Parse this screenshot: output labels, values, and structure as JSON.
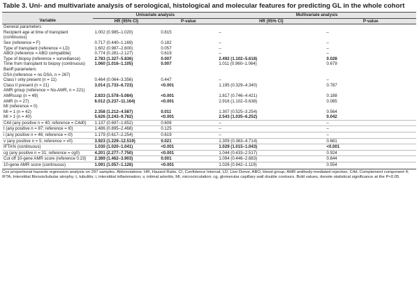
{
  "title": "Table 3. Uni- and multivariate analysis of serological, histological and molecular features for predicting GL in the whole cohort",
  "header": {
    "univariate_label": "Univariate analysis",
    "multivariate_label": "Multivariate analysis",
    "variable_label": "Variable",
    "hr_label": "HR (95% CI)",
    "p_label": "P-value",
    "hr2_label": "HR (95% CI)",
    "p2_label": "P-value"
  },
  "rows": [
    {
      "v": "General parameters",
      "lvl": 0,
      "hr": "",
      "p": "",
      "hr2": "",
      "p2": "",
      "sep": false
    },
    {
      "v": "Recipient age at time of transplant (continuous)",
      "lvl": 1,
      "hr": "1.002 (0.985–1.020)",
      "p": "0.815",
      "hr2": "–",
      "p2": "–",
      "sep": false
    },
    {
      "v": "Sex (reference = F)",
      "lvl": 1,
      "hr": "0.717 (0.440–1.169)",
      "p": "0.182",
      "hr2": "–",
      "p2": "–",
      "sep": false
    },
    {
      "v": "Type of transplant (reference = LD)",
      "lvl": 1,
      "hr": "1.602 (0.987–2.600)",
      "p": "0.057",
      "hr2": "–",
      "p2": "–",
      "sep": false
    },
    {
      "v": "ABOi (reference = ABO compatible)",
      "lvl": 1,
      "hr": "0.774 (0.281–2.127)",
      "p": "0.619",
      "hr2": "–",
      "p2": "–",
      "sep": false
    },
    {
      "v": "Type of biopsy (reference = surveillance)",
      "lvl": 1,
      "hr": "2.783 (1.327–5.836)",
      "p": "0.007",
      "hr2": "2.492 (1.102–5.618)",
      "p2": "0.028",
      "b": true,
      "b2": true,
      "sep": false
    },
    {
      "v": "Time from transplant to biopsy (continuous)",
      "lvl": 1,
      "hr": "1.060 (1.016–1.105)",
      "p": "0.007",
      "hr2": "1.011 (0.960–1.064)",
      "p2": "0.679",
      "b": true,
      "sep": false
    },
    {
      "v": "Banff parameters",
      "lvl": 0,
      "hr": "",
      "p": "",
      "hr2": "",
      "p2": "",
      "sep": false
    },
    {
      "v": "DSA (reference = no DSA, n = 267)",
      "lvl": 0,
      "hr": "",
      "p": "",
      "hr2": "",
      "p2": "",
      "sep": false
    },
    {
      "v": "Class I only present (n = 11)",
      "lvl": 2,
      "hr": "0.464 (0.064–3.356)",
      "p": "0.447",
      "hr2": "–",
      "p2": "–",
      "sep": false
    },
    {
      "v": "Class II present (n = 21)",
      "lvl": 2,
      "hr": "3.014 (1.733–6.723)",
      "p": "<0.001",
      "hr2": "1.195 (0.329–4.340)",
      "p2": "0.787",
      "b": true,
      "sep": false
    },
    {
      "v": "AMR group (reference = No-AMR, n = 221)",
      "lvl": 0,
      "hr": "",
      "p": "",
      "hr2": "",
      "p2": "",
      "sep": false
    },
    {
      "v": "AMRsusp (n = 49)",
      "lvl": 2,
      "hr": "2.833 (1.578–5.084)",
      "p": "<0.001",
      "hr2": "1.817 (0.746–4.421)",
      "p2": "0.188",
      "b": true,
      "sep": false
    },
    {
      "v": "AMR (n = 27)",
      "lvl": 2,
      "hr": "6.012 (3.237–11.164)",
      "p": "<0.001",
      "hr2": "2.916 (1.102–5.638)",
      "p2": "0.085",
      "b": true,
      "sep": false
    },
    {
      "v": "MI (reference = 0)",
      "lvl": 0,
      "hr": "",
      "p": "",
      "hr2": "",
      "p2": "",
      "sep": false
    },
    {
      "v": "MI = 1 (n = 42)",
      "lvl": 2,
      "hr": "2.358 (1.212–4.587)",
      "p": "0.011",
      "hr2": "1.307 (0.525–3.254)",
      "p2": "0.564",
      "b": true,
      "sep": false
    },
    {
      "v": "MI > 1 (n = 40)",
      "lvl": 2,
      "hr": "5.626 (3.243–9.762)",
      "p": "<0.001",
      "hr2": "2.543 (1.035–6.252)",
      "p2": "0.042",
      "b": true,
      "b2": true,
      "sep": false
    },
    {
      "v": "C4d (any positive n = 40; reference = C4d0)",
      "lvl": 0,
      "hr": "1.137 (0.697–1.852)",
      "p": "0.608",
      "hr2": "–",
      "p2": "–",
      "sep": true
    },
    {
      "v": "t (any positive n = 87; reference = t0)",
      "lvl": 0,
      "hr": "1.486 (0.895–2.468)",
      "p": "0.125",
      "hr2": "–",
      "p2": "–",
      "sep": true
    },
    {
      "v": "i (any positive n = 46; reference = i0)",
      "lvl": 0,
      "hr": "1.179 (0.617–2.254)",
      "p": "0.619",
      "hr2": "–",
      "p2": "–",
      "sep": true
    },
    {
      "v": "v (any positive n = 5; reference = v0)",
      "lvl": 0,
      "hr": "3.923 (1.229–12.519)",
      "p": "0.021",
      "hr2": "1.309 (0.363–4.714)",
      "p2": "0.681",
      "b": true,
      "sep": true
    },
    {
      "v": "IFTA% (continuous)",
      "lvl": 0,
      "hr": "1.030 (1.020–1.041)",
      "p": "<0.001",
      "hr2": "1.029 (1.015–1.043)",
      "p2": "<0.001",
      "b": true,
      "b2": true,
      "sep": true
    },
    {
      "v": "cg (any positive n = 31; reference = cg0)",
      "lvl": 0,
      "hr": "4.201 (2.277–7.750)",
      "p": "<0.001",
      "hr2": "1.044 (0.433–2.517)",
      "p2": "0.924",
      "b": true,
      "sep": true
    },
    {
      "v": "Cut off 10-gene AMR score (reference 0.23)",
      "lvl": 0,
      "hr": "2.389 (1.462–3.903)",
      "p": "0.001",
      "hr2": "1.094 (0.446–2.683)",
      "p2": "0.844",
      "b": true,
      "sep": true
    },
    {
      "v": "10-gene AMR score (continuous)",
      "lvl": 0,
      "hr": "1.091 (1.057–1.126)",
      "p": "<0.001",
      "hr2": "1.026 (0.942–1.119)",
      "p2": "0.554",
      "b": true,
      "sep": true
    }
  ],
  "footnote": "Cox proportional hazards regression analysis on 297 samples. Abbreviations: HR, Hazard Ratio, CI, Confidence Interval, LD, Live Donor, ABO, blood group; AMR antibody-mediated rejection; C4d, Complement component 4; IFTA, Interstitial fibrosis/tubular atrophy; t, tubulitis; i, interstitial inflammation; v, intimal arteritis; MI, microcirculation; cg, glomerular capillary wall double contours. Bold values, denote statistical significance at the P<0.05."
}
